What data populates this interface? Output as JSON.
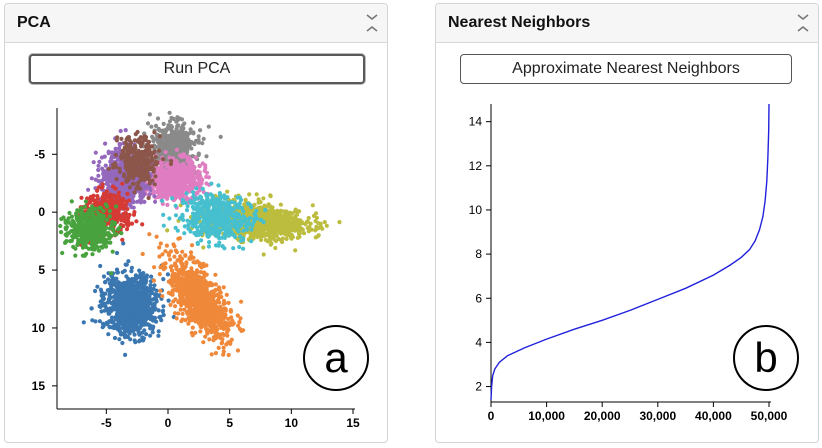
{
  "pca_panel": {
    "title": "PCA",
    "button_label": "Run PCA",
    "badge_label": "a",
    "chart_data": {
      "type": "scatter",
      "title": "",
      "xlabel": "",
      "ylabel": "",
      "xlim": [
        -9,
        15
      ],
      "ylim": [
        17,
        -9
      ],
      "y_inverted": true,
      "x_ticks": [
        -5,
        0,
        5,
        10,
        15
      ],
      "y_ticks": [
        -5,
        0,
        5,
        10,
        15
      ],
      "series": [
        {
          "name": "cluster-blue",
          "color": "#3a76b0",
          "center": [
            -3.0,
            8.0
          ],
          "spread": [
            2.0,
            2.4
          ],
          "count": 900
        },
        {
          "name": "cluster-orange",
          "color": "#f0883a",
          "center": [
            2.5,
            7.5
          ],
          "spread": [
            2.2,
            2.4
          ],
          "count": 900
        },
        {
          "name": "cluster-olive",
          "color": "#bcbd3e",
          "center": [
            7.0,
            0.8
          ],
          "spread": [
            3.8,
            1.4
          ],
          "count": 1000
        },
        {
          "name": "cluster-gray",
          "color": "#8a8a8a",
          "center": [
            0.5,
            -5.5
          ],
          "spread": [
            1.6,
            2.0
          ],
          "count": 600
        },
        {
          "name": "cluster-pink",
          "color": "#e07dc2",
          "center": [
            0.5,
            -2.8
          ],
          "spread": [
            2.0,
            1.6
          ],
          "count": 600
        },
        {
          "name": "cluster-purple",
          "color": "#9468bd",
          "center": [
            -3.5,
            -3.0
          ],
          "spread": [
            1.8,
            2.2
          ],
          "count": 600
        },
        {
          "name": "cluster-brown",
          "color": "#8c564b",
          "center": [
            -2.5,
            -4.5
          ],
          "spread": [
            1.4,
            1.8
          ],
          "count": 350
        },
        {
          "name": "cluster-cyan",
          "color": "#46bfcf",
          "center": [
            4.0,
            0.5
          ],
          "spread": [
            2.6,
            1.8
          ],
          "count": 500
        },
        {
          "name": "cluster-red",
          "color": "#d53a35",
          "center": [
            -5.0,
            0.0
          ],
          "spread": [
            1.6,
            1.6
          ],
          "count": 400
        },
        {
          "name": "cluster-green",
          "color": "#48a33e",
          "center": [
            -6.5,
            1.5
          ],
          "spread": [
            1.8,
            1.6
          ],
          "count": 400
        }
      ]
    }
  },
  "nn_panel": {
    "title": "Nearest Neighbors",
    "button_label": "Approximate Nearest Neighbors",
    "badge_label": "b",
    "chart_data": {
      "type": "line",
      "title": "",
      "xlabel": "",
      "ylabel": "",
      "xlim": [
        0,
        50000
      ],
      "ylim": [
        1.3,
        14.8
      ],
      "x_ticks": [
        0,
        10000,
        20000,
        30000,
        40000,
        50000
      ],
      "x_tick_labels": [
        "0",
        "10,000",
        "20,000",
        "30,000",
        "40,000",
        "50,000"
      ],
      "y_ticks": [
        2,
        4,
        6,
        8,
        10,
        12,
        14
      ],
      "series": [
        {
          "name": "sorted distances",
          "color": "#2222dd",
          "x": [
            0,
            100,
            300,
            700,
            1500,
            3000,
            6000,
            10000,
            15000,
            20000,
            25000,
            30000,
            35000,
            40000,
            43000,
            45000,
            46500,
            47500,
            48300,
            48900,
            49300,
            49600,
            49800,
            49950,
            50000
          ],
          "y": [
            1.4,
            2.0,
            2.5,
            2.8,
            3.1,
            3.4,
            3.75,
            4.15,
            4.6,
            5.0,
            5.45,
            5.95,
            6.45,
            7.05,
            7.5,
            7.85,
            8.2,
            8.6,
            9.1,
            9.7,
            10.4,
            11.3,
            12.4,
            13.6,
            14.8
          ]
        }
      ]
    }
  }
}
